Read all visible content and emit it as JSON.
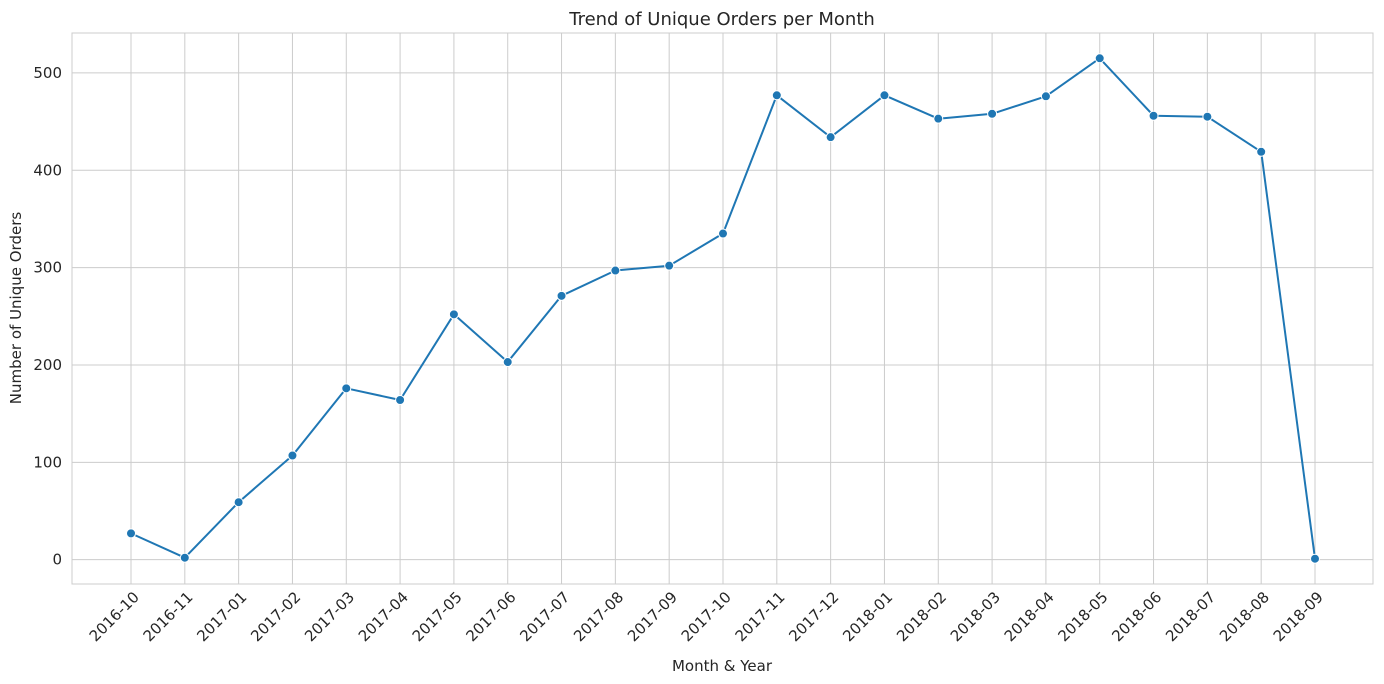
{
  "chart_data": {
    "type": "line",
    "title": "Trend of Unique Orders per Month",
    "xlabel": "Month & Year",
    "ylabel": "Number of Unique Orders",
    "x": [
      "2016-10",
      "2016-11",
      "2017-01",
      "2017-02",
      "2017-03",
      "2017-04",
      "2017-05",
      "2017-06",
      "2017-07",
      "2017-08",
      "2017-09",
      "2017-10",
      "2017-11",
      "2017-12",
      "2018-01",
      "2018-02",
      "2018-03",
      "2018-04",
      "2018-05",
      "2018-06",
      "2018-07",
      "2018-08",
      "2018-09"
    ],
    "series": [
      {
        "values": [
          27,
          2,
          59,
          107,
          176,
          164,
          252,
          203,
          271,
          297,
          302,
          335,
          477,
          434,
          477,
          453,
          458,
          476,
          515,
          456,
          455,
          419,
          1
        ]
      }
    ],
    "ylim": [
      -25,
      541
    ],
    "yticks": [
      0,
      100,
      200,
      300,
      400,
      500
    ],
    "grid": true,
    "line_color": "#1f77b4"
  }
}
